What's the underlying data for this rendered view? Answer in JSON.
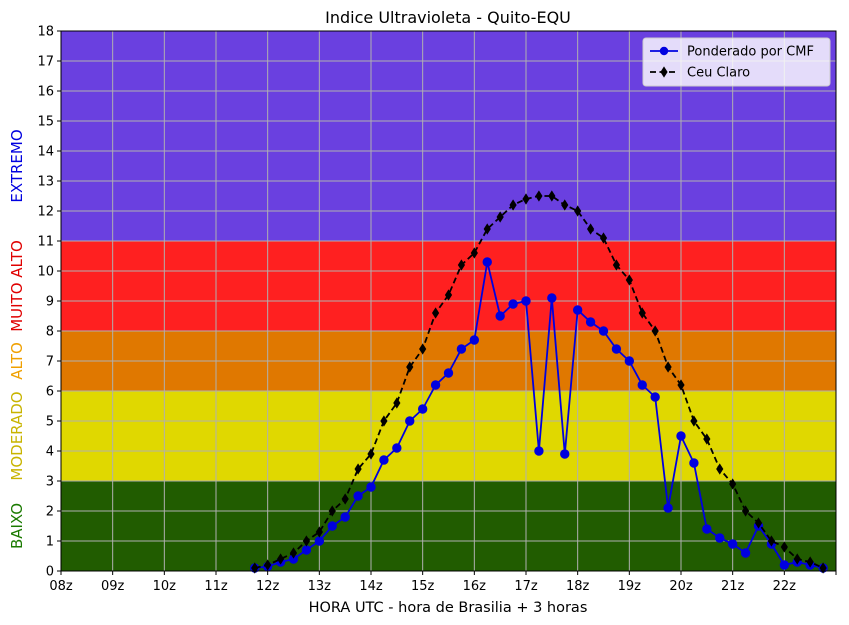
{
  "chart_data": {
    "type": "line",
    "title": "Indice Ultravioleta - Quito-EQU",
    "xlabel": "HORA UTC - hora de Brasilia + 3 horas",
    "ylabel": "",
    "xlim": [
      8,
      23
    ],
    "ylim": [
      0,
      18
    ],
    "x_ticks": [
      8,
      9,
      10,
      11,
      12,
      13,
      14,
      15,
      16,
      17,
      18,
      19,
      20,
      21,
      22,
      23
    ],
    "x_tick_labels": [
      "08z",
      "09z",
      "10z",
      "11z",
      "12z",
      "13z",
      "14z",
      "15z",
      "16z",
      "17z",
      "18z",
      "19z",
      "20z",
      "21z",
      "22z",
      ""
    ],
    "y_ticks": [
      0,
      1,
      2,
      3,
      4,
      5,
      6,
      7,
      8,
      9,
      10,
      11,
      12,
      13,
      14,
      15,
      16,
      17,
      18
    ],
    "grid": true,
    "legend_position": "top-right",
    "bands": [
      {
        "name": "BAIXO",
        "from": 0,
        "to": 3,
        "color": "#215c00",
        "label_color": "#1a7a00"
      },
      {
        "name": "MODERADO",
        "from": 3,
        "to": 6,
        "color": "#e0d800",
        "label_color": "#c8b400"
      },
      {
        "name": "ALTO",
        "from": 6,
        "to": 8,
        "color": "#e07800",
        "label_color": "#f0a000"
      },
      {
        "name": "MUITO ALTO",
        "from": 8,
        "to": 11,
        "color": "#ff2020",
        "label_color": "#e00000"
      },
      {
        "name": "EXTREMO",
        "from": 11,
        "to": 18,
        "color": "#6a40e0",
        "label_color": "#0000e0"
      }
    ],
    "series": [
      {
        "name": "Ponderado por CMF",
        "color": "#0000e0",
        "marker": "circle",
        "linestyle": "solid",
        "x": [
          11.75,
          12.0,
          12.25,
          12.5,
          12.75,
          13.0,
          13.25,
          13.5,
          13.75,
          14.0,
          14.25,
          14.5,
          14.75,
          15.0,
          15.25,
          15.5,
          15.75,
          16.0,
          16.25,
          16.5,
          16.75,
          17.0,
          17.25,
          17.5,
          17.75,
          18.0,
          18.25,
          18.5,
          18.75,
          19.0,
          19.25,
          19.5,
          19.75,
          20.0,
          20.25,
          20.5,
          20.75,
          21.0,
          21.25,
          21.5,
          21.75,
          22.0,
          22.25,
          22.5,
          22.75
        ],
        "y": [
          0.1,
          0.15,
          0.3,
          0.4,
          0.7,
          1.0,
          1.5,
          1.8,
          2.5,
          2.8,
          3.7,
          4.1,
          5.0,
          5.4,
          6.2,
          6.6,
          7.4,
          7.7,
          10.3,
          8.5,
          8.9,
          9.0,
          4.0,
          9.1,
          3.9,
          8.7,
          8.3,
          8.0,
          7.4,
          7.0,
          6.2,
          5.8,
          2.1,
          4.5,
          3.6,
          1.4,
          1.1,
          0.9,
          0.6,
          1.5,
          0.9,
          0.2,
          0.3,
          0.2,
          0.1
        ]
      },
      {
        "name": "Ceu Claro",
        "color": "#000000",
        "marker": "diamond",
        "linestyle": "dashed",
        "x": [
          11.75,
          12.0,
          12.25,
          12.5,
          12.75,
          13.0,
          13.25,
          13.5,
          13.75,
          14.0,
          14.25,
          14.5,
          14.75,
          15.0,
          15.25,
          15.5,
          15.75,
          16.0,
          16.25,
          16.5,
          16.75,
          17.0,
          17.25,
          17.5,
          17.75,
          18.0,
          18.25,
          18.5,
          18.75,
          19.0,
          19.25,
          19.5,
          19.75,
          20.0,
          20.25,
          20.5,
          20.75,
          21.0,
          21.25,
          21.5,
          21.75,
          22.0,
          22.25,
          22.5,
          22.75
        ],
        "y": [
          0.1,
          0.2,
          0.4,
          0.6,
          1.0,
          1.3,
          2.0,
          2.4,
          3.4,
          3.9,
          5.0,
          5.6,
          6.8,
          7.4,
          8.6,
          9.2,
          10.2,
          10.6,
          11.4,
          11.8,
          12.2,
          12.4,
          12.5,
          12.5,
          12.2,
          12.0,
          11.4,
          11.1,
          10.2,
          9.7,
          8.6,
          8.0,
          6.8,
          6.2,
          5.0,
          4.4,
          3.4,
          2.9,
          2.0,
          1.6,
          1.0,
          0.8,
          0.4,
          0.3,
          0.1
        ]
      }
    ]
  }
}
